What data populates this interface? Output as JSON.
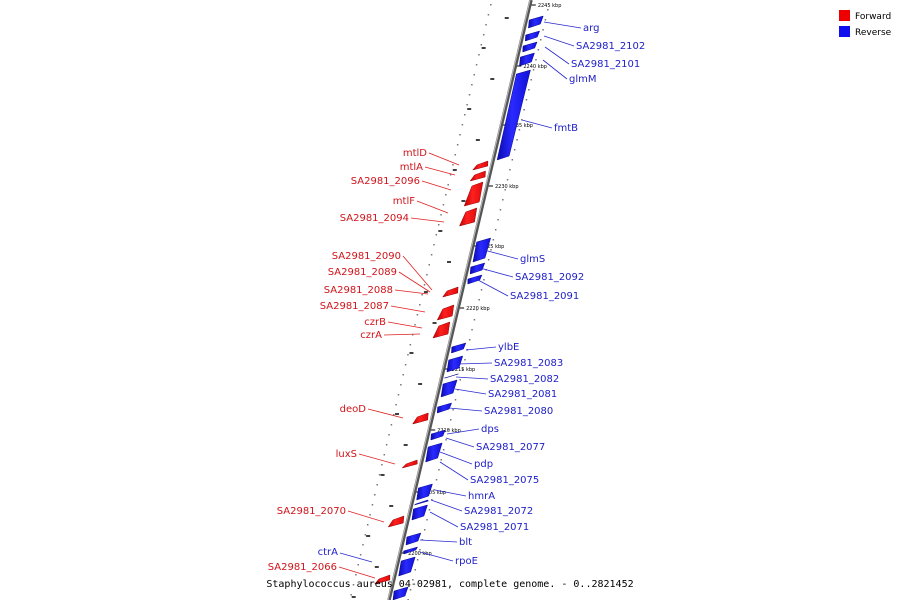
{
  "title": "Staphylococcus aureus 04-02981, complete genome. - 0..2821452",
  "legend": [
    {
      "label": "Forward",
      "color": "#ee0000"
    },
    {
      "label": "Reverse",
      "color": "#1010ee"
    }
  ],
  "colors": {
    "forward": "#ee1111",
    "reverse": "#1414ee",
    "forward_label": "#d0141a",
    "reverse_label": "#2020c8",
    "backbone": "#808080"
  },
  "ticks": [
    "2245 kbp",
    "2240 kbp",
    "2235 kbp",
    "2230 kbp",
    "2225 kbp",
    "2220 kbp",
    "2215 kbp",
    "2210 kbp",
    "2205 kbp",
    "2200 kbp"
  ],
  "reverse_genes": [
    "arg",
    "SA2981_2102",
    "SA2981_2101",
    "glmM",
    "fmtB",
    "glmS",
    "SA2981_2092",
    "SA2981_2091",
    "ylbE",
    "SA2981_2083",
    "SA2981_2082",
    "SA2981_2081",
    "SA2981_2080",
    "dps",
    "SA2981_2077",
    "pdp",
    "SA2981_2075",
    "hmrA",
    "SA2981_2072",
    "SA2981_2071",
    "blt",
    "rpoE",
    "ctrA"
  ],
  "forward_genes": [
    "mtlD",
    "mtlA",
    "SA2981_2096",
    "mtlF",
    "SA2981_2094",
    "SA2981_2090",
    "SA2981_2089",
    "SA2981_2088",
    "SA2981_2087",
    "czrB",
    "czrA",
    "deoD",
    "luxS",
    "SA2981_2070",
    "SA2981_2066"
  ]
}
